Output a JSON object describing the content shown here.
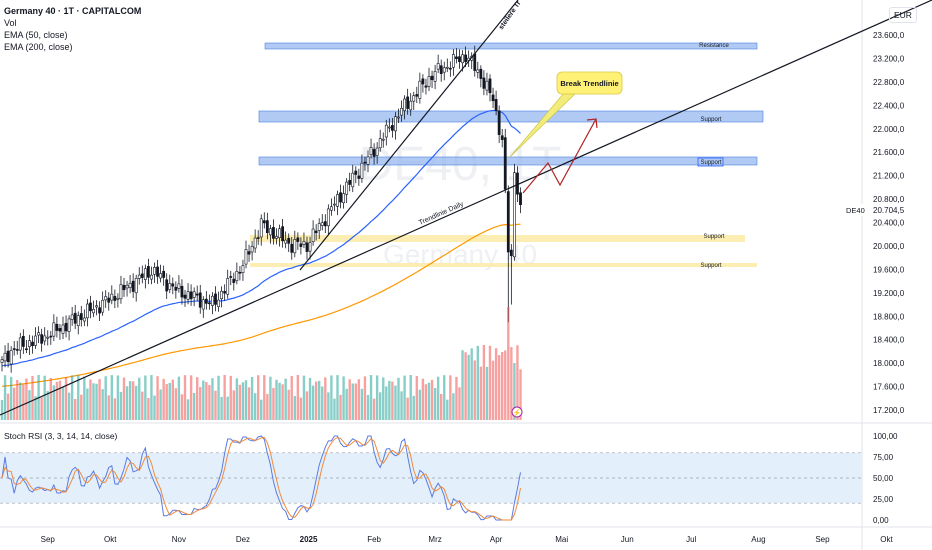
{
  "header": {
    "symbol_line": "Germany 40 · 1T · CAPITALCOM",
    "indicators": [
      "Vol",
      "EMA (50, close)",
      "EMA (200, close)"
    ],
    "currency": "EUR"
  },
  "watermark": {
    "line1": "DE40, 1T",
    "line2": "Germany 40"
  },
  "last_price": {
    "symbol": "DE40",
    "value": "20.704,5"
  },
  "stoch": {
    "label": "Stoch RSI (3, 3, 14, 14, close)",
    "ticks": [
      "100,00",
      "75,00",
      "50,00",
      "25,00",
      "0,00"
    ]
  },
  "annotations": {
    "callout": "Break Trendlinie",
    "trendline_daily": "Trendlinie Daily",
    "steep_trendline": "steilere Tr",
    "zones": [
      "Resistance",
      "Support",
      "Support",
      "Support",
      "Support"
    ]
  },
  "colors": {
    "up": "#26a69a",
    "down": "#ef5350",
    "ema50": "#2962ff",
    "ema200": "#ff9800",
    "k": "#5b7be0",
    "d": "#f08a3c",
    "zone_blue": "#90b4f0",
    "zone_yellow": "#fbeaa0",
    "arrow": "#b22222"
  },
  "chart_data": {
    "type": "candlestick",
    "ylim": [
      17000,
      23900
    ],
    "yticks": [
      23600,
      23200,
      22800,
      22400,
      22000,
      21600,
      21200,
      20800,
      20400,
      20000,
      19600,
      19200,
      18800,
      18400,
      18000,
      17600,
      17200
    ],
    "ytick_labels": [
      "23.600,0",
      "23.200,0",
      "22.800,0",
      "22.400,0",
      "22.000,0",
      "21.600,0",
      "21.200,0",
      "20.800,0",
      "20.400,0",
      "20.000,0",
      "19.600,0",
      "19.200,0",
      "18.800,0",
      "18.400,0",
      "18.000,0",
      "17.600,0",
      "17.200,0"
    ],
    "xlim": [
      0,
      290
    ],
    "xticks": [
      {
        "x": 15,
        "label": "Sep"
      },
      {
        "x": 35.5,
        "label": "Okt"
      },
      {
        "x": 58,
        "label": "Nov"
      },
      {
        "x": 79,
        "label": "Dez"
      },
      {
        "x": 100.5,
        "label": "2025"
      },
      {
        "x": 122,
        "label": "Feb"
      },
      {
        "x": 142,
        "label": "Mrz"
      },
      {
        "x": 162,
        "label": "Apr"
      },
      {
        "x": 183.5,
        "label": "Mai"
      },
      {
        "x": 205,
        "label": "Jun"
      },
      {
        "x": 226,
        "label": "Jul"
      },
      {
        "x": 248,
        "label": "Aug"
      },
      {
        "x": 269,
        "label": "Sep"
      },
      {
        "x": 290,
        "label": "Okt"
      }
    ],
    "close_anchors": [
      [
        0,
        18000
      ],
      [
        3,
        18225
      ],
      [
        15,
        18480
      ],
      [
        35,
        19080
      ],
      [
        49,
        19590
      ],
      [
        57,
        19250
      ],
      [
        69,
        19000
      ],
      [
        79,
        19680
      ],
      [
        85,
        20360
      ],
      [
        95,
        20020
      ],
      [
        100,
        20020
      ],
      [
        111,
        20870
      ],
      [
        122,
        21640
      ],
      [
        131,
        22320
      ],
      [
        141,
        22920
      ],
      [
        152,
        23260
      ],
      [
        157,
        22900
      ],
      [
        161,
        22490
      ],
      [
        164,
        21810
      ],
      [
        166,
        19930
      ],
      [
        167,
        19760
      ],
      [
        168,
        21300
      ],
      [
        170,
        20704
      ]
    ],
    "ema50_seed": 17950,
    "ema200_seed": 17600,
    "last_value": 20704.5
  }
}
